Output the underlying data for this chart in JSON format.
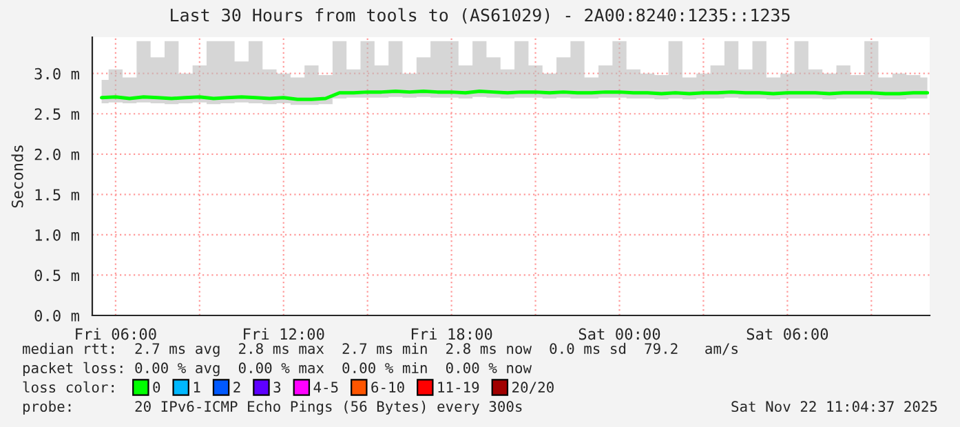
{
  "chart_data": {
    "type": "line",
    "title": "Last 30 Hours from tools to (AS61029) - 2A00:8240:1235::1235",
    "ylabel": "Seconds",
    "x": [
      "2025-11-21T05:30",
      "2025-11-21T06:00",
      "2025-11-21T06:30",
      "2025-11-21T07:00",
      "2025-11-21T07:30",
      "2025-11-21T08:00",
      "2025-11-21T08:30",
      "2025-11-21T09:00",
      "2025-11-21T09:30",
      "2025-11-21T10:00",
      "2025-11-21T10:30",
      "2025-11-21T11:00",
      "2025-11-21T11:30",
      "2025-11-21T12:00",
      "2025-11-21T12:30",
      "2025-11-21T13:00",
      "2025-11-21T13:30",
      "2025-11-21T14:00",
      "2025-11-21T14:30",
      "2025-11-21T15:00",
      "2025-11-21T15:30",
      "2025-11-21T16:00",
      "2025-11-21T16:30",
      "2025-11-21T17:00",
      "2025-11-21T17:30",
      "2025-11-21T18:00",
      "2025-11-21T18:30",
      "2025-11-21T19:00",
      "2025-11-21T19:30",
      "2025-11-21T20:00",
      "2025-11-21T20:30",
      "2025-11-21T21:00",
      "2025-11-21T21:30",
      "2025-11-21T22:00",
      "2025-11-21T22:30",
      "2025-11-21T23:00",
      "2025-11-21T23:30",
      "2025-11-22T00:00",
      "2025-11-22T00:30",
      "2025-11-22T01:00",
      "2025-11-22T01:30",
      "2025-11-22T02:00",
      "2025-11-22T02:30",
      "2025-11-22T03:00",
      "2025-11-22T03:30",
      "2025-11-22T04:00",
      "2025-11-22T04:30",
      "2025-11-22T05:00",
      "2025-11-22T05:30",
      "2025-11-22T06:00",
      "2025-11-22T06:30",
      "2025-11-22T07:00",
      "2025-11-22T07:30",
      "2025-11-22T08:00",
      "2025-11-22T08:30",
      "2025-11-22T09:00",
      "2025-11-22T09:30",
      "2025-11-22T10:00",
      "2025-11-22T10:30",
      "2025-11-22T11:00"
    ],
    "series": [
      {
        "name": "0",
        "color": "#00ff00",
        "values": [
          2.7,
          2.71,
          2.69,
          2.71,
          2.7,
          2.69,
          2.7,
          2.71,
          2.69,
          2.7,
          2.71,
          2.7,
          2.69,
          2.7,
          2.68,
          2.68,
          2.69,
          2.76,
          2.76,
          2.77,
          2.77,
          2.78,
          2.77,
          2.78,
          2.77,
          2.77,
          2.76,
          2.78,
          2.77,
          2.76,
          2.77,
          2.77,
          2.76,
          2.77,
          2.76,
          2.76,
          2.77,
          2.77,
          2.76,
          2.76,
          2.75,
          2.76,
          2.75,
          2.76,
          2.76,
          2.77,
          2.76,
          2.76,
          2.75,
          2.76,
          2.76,
          2.76,
          2.75,
          2.76,
          2.76,
          2.76,
          2.75,
          2.75,
          2.76,
          2.76
        ],
        "lower": [
          2.63,
          2.64,
          2.63,
          2.64,
          2.63,
          2.62,
          2.63,
          2.64,
          2.62,
          2.63,
          2.64,
          2.63,
          2.62,
          2.63,
          2.61,
          2.61,
          2.62,
          2.69,
          2.7,
          2.7,
          2.7,
          2.71,
          2.7,
          2.71,
          2.7,
          2.7,
          2.69,
          2.71,
          2.7,
          2.69,
          2.7,
          2.7,
          2.69,
          2.7,
          2.69,
          2.69,
          2.7,
          2.7,
          2.69,
          2.69,
          2.68,
          2.69,
          2.68,
          2.69,
          2.69,
          2.7,
          2.69,
          2.69,
          2.68,
          2.69,
          2.69,
          2.69,
          2.68,
          2.69,
          2.69,
          2.69,
          2.68,
          2.68,
          2.69,
          2.69
        ],
        "upper": [
          2.92,
          3.05,
          2.95,
          3.4,
          3.2,
          3.4,
          3.0,
          3.1,
          3.4,
          3.4,
          3.15,
          3.4,
          3.05,
          3.0,
          2.95,
          3.1,
          2.98,
          3.4,
          3.05,
          3.4,
          3.1,
          3.4,
          3.0,
          3.2,
          3.4,
          3.4,
          3.1,
          3.4,
          3.2,
          3.05,
          3.4,
          3.1,
          3.0,
          3.2,
          3.4,
          2.95,
          3.1,
          3.4,
          3.05,
          3.0,
          2.98,
          3.4,
          2.95,
          3.0,
          3.1,
          3.4,
          3.05,
          3.4,
          2.95,
          3.0,
          3.4,
          3.05,
          3.0,
          3.1,
          2.98,
          3.4,
          2.95,
          3.0,
          2.98,
          2.95
        ]
      },
      {
        "name": "1",
        "color": "#00b8ff",
        "values": [
          null,
          null,
          null,
          null,
          null,
          null,
          null,
          null,
          null,
          null,
          null,
          null,
          null,
          null,
          null,
          null,
          null,
          null,
          null,
          null,
          null,
          null,
          null,
          null,
          null,
          null,
          null,
          null,
          null,
          null,
          null,
          null,
          null,
          null,
          null,
          null,
          null,
          null,
          null,
          null,
          null,
          null,
          null,
          null,
          null,
          null,
          null,
          null,
          null,
          null,
          null,
          null,
          null,
          null,
          null,
          null,
          null,
          null,
          null,
          null
        ]
      },
      {
        "name": "2",
        "color": "#0059ff",
        "values": [
          null,
          null,
          null,
          null,
          null,
          null,
          null,
          null,
          null,
          null,
          null,
          null,
          null,
          null,
          null,
          null,
          null,
          null,
          null,
          null,
          null,
          null,
          null,
          null,
          null,
          null,
          null,
          null,
          null,
          null,
          null,
          null,
          null,
          null,
          null,
          null,
          null,
          null,
          null,
          null,
          null,
          null,
          null,
          null,
          null,
          null,
          null,
          null,
          null,
          null,
          null,
          null,
          null,
          null,
          null,
          null,
          null,
          null,
          null,
          null
        ]
      },
      {
        "name": "3",
        "color": "#5e00ff",
        "values": [
          null,
          null,
          null,
          null,
          null,
          null,
          null,
          null,
          null,
          null,
          null,
          null,
          null,
          null,
          null,
          null,
          null,
          null,
          null,
          null,
          null,
          null,
          null,
          null,
          null,
          null,
          null,
          null,
          null,
          null,
          null,
          null,
          null,
          null,
          null,
          null,
          null,
          null,
          null,
          null,
          null,
          null,
          null,
          null,
          null,
          null,
          null,
          null,
          null,
          null,
          null,
          null,
          null,
          null,
          null,
          null,
          null,
          null,
          null,
          null
        ]
      },
      {
        "name": "4-5",
        "color": "#ff00ff",
        "values": [
          null,
          null,
          null,
          null,
          null,
          null,
          null,
          null,
          null,
          null,
          null,
          null,
          null,
          null,
          null,
          null,
          null,
          null,
          null,
          null,
          null,
          null,
          null,
          null,
          null,
          null,
          null,
          null,
          null,
          null,
          null,
          null,
          null,
          null,
          null,
          null,
          null,
          null,
          null,
          null,
          null,
          null,
          null,
          null,
          null,
          null,
          null,
          null,
          null,
          null,
          null,
          null,
          null,
          null,
          null,
          null,
          null,
          null,
          null,
          null
        ]
      },
      {
        "name": "6-10",
        "color": "#ff5500",
        "values": [
          null,
          null,
          null,
          null,
          null,
          null,
          null,
          null,
          null,
          null,
          null,
          null,
          null,
          null,
          null,
          null,
          null,
          null,
          null,
          null,
          null,
          null,
          null,
          null,
          null,
          null,
          null,
          null,
          null,
          null,
          null,
          null,
          null,
          null,
          null,
          null,
          null,
          null,
          null,
          null,
          null,
          null,
          null,
          null,
          null,
          null,
          null,
          null,
          null,
          null,
          null,
          null,
          null,
          null,
          null,
          null,
          null,
          null,
          null,
          null
        ]
      },
      {
        "name": "11-19",
        "color": "#ff0000",
        "values": [
          null,
          null,
          null,
          null,
          null,
          null,
          null,
          null,
          null,
          null,
          null,
          null,
          null,
          null,
          null,
          null,
          null,
          null,
          null,
          null,
          null,
          null,
          null,
          null,
          null,
          null,
          null,
          null,
          null,
          null,
          null,
          null,
          null,
          null,
          null,
          null,
          null,
          null,
          null,
          null,
          null,
          null,
          null,
          null,
          null,
          null,
          null,
          null,
          null,
          null,
          null,
          null,
          null,
          null,
          null,
          null,
          null,
          null,
          null,
          null
        ]
      },
      {
        "name": "20/20",
        "color": "#a10000",
        "values": [
          null,
          null,
          null,
          null,
          null,
          null,
          null,
          null,
          null,
          null,
          null,
          null,
          null,
          null,
          null,
          null,
          null,
          null,
          null,
          null,
          null,
          null,
          null,
          null,
          null,
          null,
          null,
          null,
          null,
          null,
          null,
          null,
          null,
          null,
          null,
          null,
          null,
          null,
          null,
          null,
          null,
          null,
          null,
          null,
          null,
          null,
          null,
          null,
          null,
          null,
          null,
          null,
          null,
          null,
          null,
          null,
          null,
          null,
          null,
          null
        ]
      }
    ],
    "xlim": [
      "2025-11-21T05:10",
      "2025-11-22T11:05"
    ],
    "xticks": [
      {
        "value": "2025-11-21T06:00",
        "label": "Fri 06:00"
      },
      {
        "value": "2025-11-21T09:00",
        "label": null
      },
      {
        "value": "2025-11-21T12:00",
        "label": "Fri 12:00"
      },
      {
        "value": "2025-11-21T15:00",
        "label": null
      },
      {
        "value": "2025-11-21T18:00",
        "label": "Fri 18:00"
      },
      {
        "value": "2025-11-21T21:00",
        "label": null
      },
      {
        "value": "2025-11-22T00:00",
        "label": "Sat 00:00"
      },
      {
        "value": "2025-11-22T03:00",
        "label": null
      },
      {
        "value": "2025-11-22T06:00",
        "label": "Sat 06:00"
      },
      {
        "value": "2025-11-22T09:00",
        "label": null
      }
    ],
    "ylim": [
      0,
      3.45
    ],
    "yticks": [
      {
        "value": 0,
        "label": "0.0 m"
      },
      {
        "value": 0.5,
        "label": "0.5 m"
      },
      {
        "value": 1.0,
        "label": "1.0 m"
      },
      {
        "value": 1.5,
        "label": "1.5 m"
      },
      {
        "value": 2.0,
        "label": "2.0 m"
      },
      {
        "value": 2.5,
        "label": "2.5 m"
      },
      {
        "value": 3.0,
        "label": "3.0 m"
      }
    ],
    "grid": true,
    "legend": "bottom left",
    "annotations": [
      "median rtt:  2.7 ms avg  2.8 ms max  2.7 ms min  2.8 ms now  0.0 ms sd  79.2   am/s",
      "packet loss: 0.00 % avg  0.00 % max  0.00 % min  0.00 % now",
      "loss color:",
      "probe:       20 IPv6-ICMP Echo Pings (56 Bytes) every 300s",
      "Sat Nov 22 11:04:37 2025"
    ]
  }
}
